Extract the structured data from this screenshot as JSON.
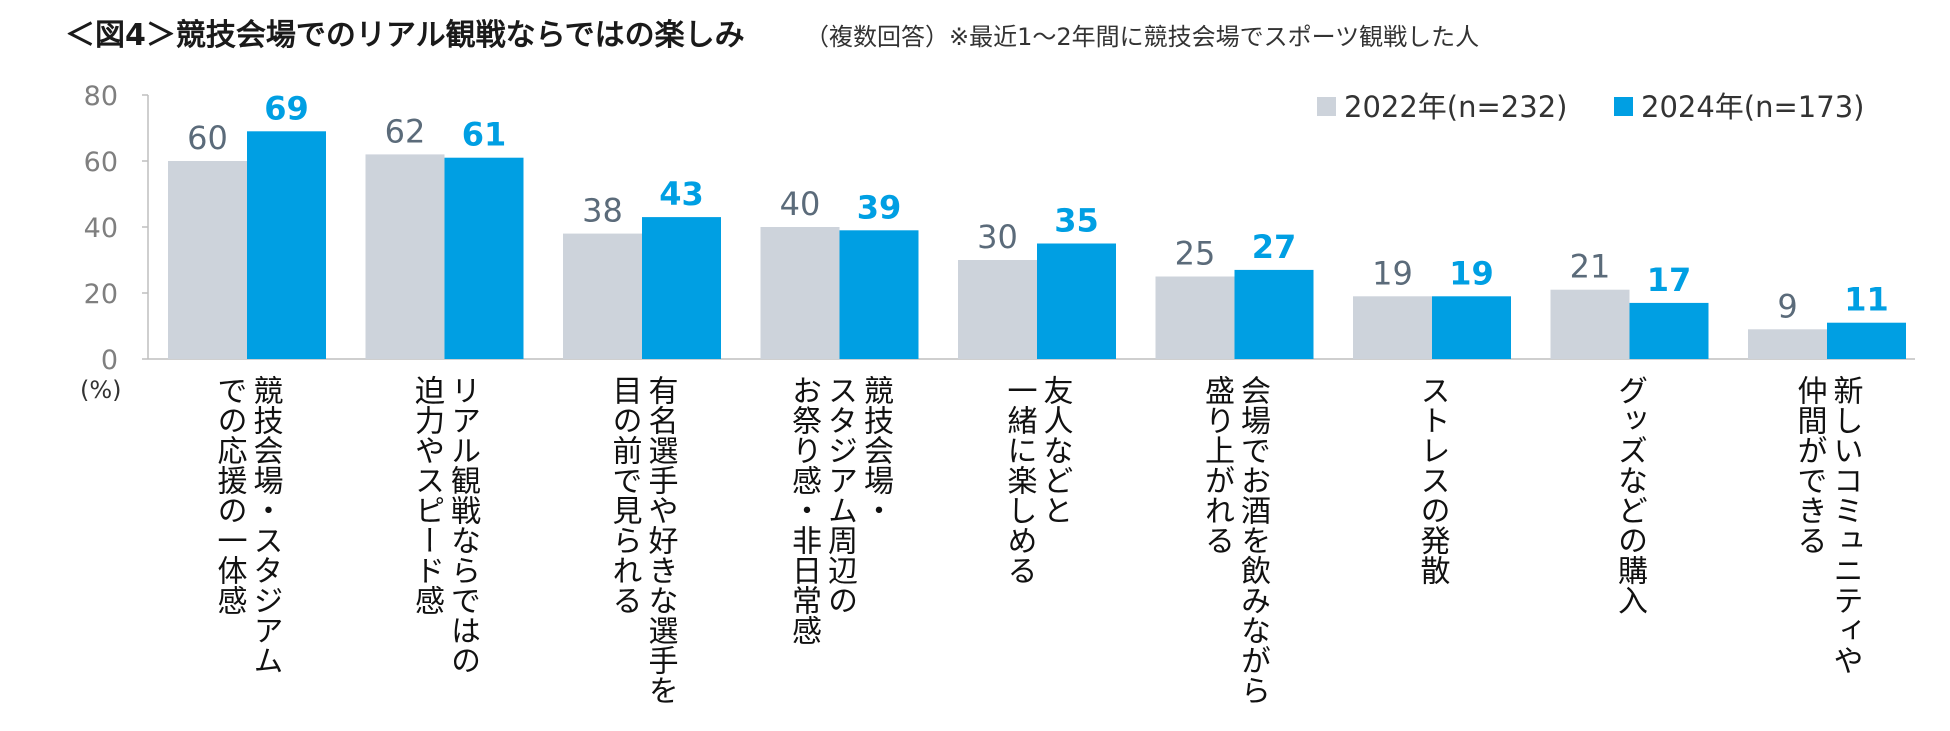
{
  "chart_data": {
    "type": "bar",
    "title": "＜図4＞競技会場でのリアル観戦ならではの楽しみ",
    "subtitle": "（複数回答）※最近1～2年間に競技会場でスポーツ観戦した人",
    "unit_label": "(%)",
    "ylim": [
      0,
      80
    ],
    "yticks": [
      "0",
      "20",
      "40",
      "60",
      "80"
    ],
    "grid": false,
    "legend_position": "top-right",
    "categories": [
      [
        "競技会場・スタジアム",
        "での応援の一体感"
      ],
      [
        "リアル観戦ならではの",
        "迫力やスピード感"
      ],
      [
        "有名選手や好きな選手を",
        "目の前で見られる"
      ],
      [
        "競技会場・",
        "スタジアム周辺の",
        "お祭り感・非日常感"
      ],
      [
        "友人などと",
        "一緒に楽しめる"
      ],
      [
        "会場でお酒を飲みながら",
        "盛り上がれる"
      ],
      [
        "ストレスの発散"
      ],
      [
        "グッズなどの購入"
      ],
      [
        "新しいコミュニティや",
        "仲間ができる"
      ]
    ],
    "series": [
      {
        "name": "2022年(n=232)",
        "color": "#cdd3db",
        "values": [
          60,
          62,
          38,
          40,
          30,
          25,
          19,
          21,
          9
        ]
      },
      {
        "name": "2024年(n=173)",
        "color": "#009fe3",
        "values": [
          69,
          61,
          43,
          39,
          35,
          27,
          19,
          17,
          11
        ]
      }
    ]
  }
}
